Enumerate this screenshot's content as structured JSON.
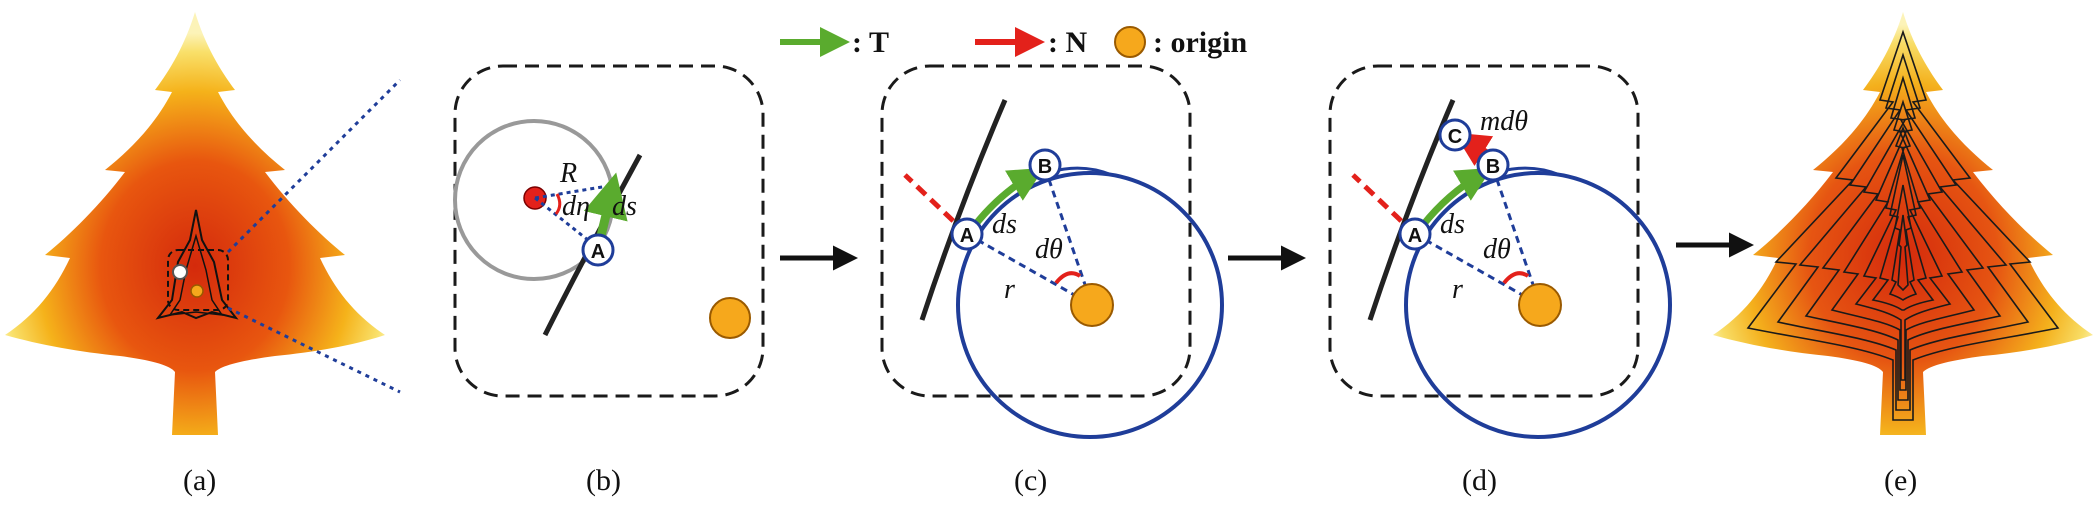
{
  "legend": {
    "tangent_label": ": T",
    "normal_label": ": N",
    "origin_label": ": origin"
  },
  "colors": {
    "tangent": "#5aab2e",
    "normal": "#e3211b",
    "origin_fill": "#f6a81c",
    "circle": "#1f3d99",
    "osculating": "#999999",
    "frame": "#1a1a1a"
  },
  "panels": {
    "a": {
      "caption": "(a)"
    },
    "b": {
      "caption": "(b)",
      "point_a": "A",
      "radius": "R",
      "angle": "dη",
      "arc": "ds"
    },
    "c": {
      "caption": "(c)",
      "point_a": "A",
      "point_b": "B",
      "arc": "ds",
      "angle": "dθ",
      "radius": "r"
    },
    "d": {
      "caption": "(d)",
      "point_a": "A",
      "point_b": "B",
      "point_c": "C",
      "arc": "ds",
      "angle": "dθ",
      "radius": "r",
      "offset": "mdθ"
    },
    "e": {
      "caption": "(e)"
    }
  }
}
